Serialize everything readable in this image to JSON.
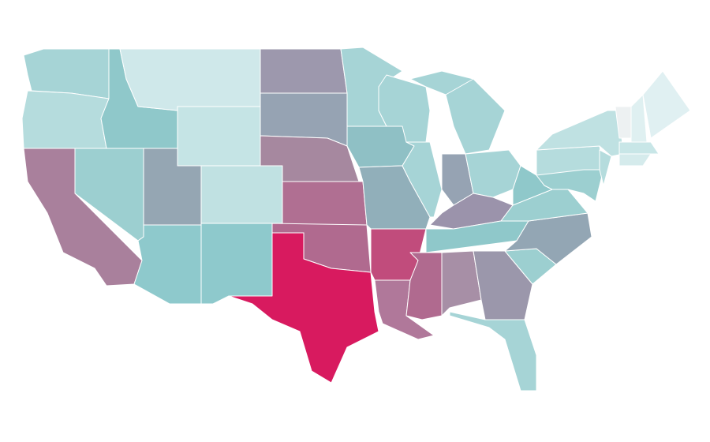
{
  "map": {
    "regions": [
      {
        "color": "#a6d4d6"
      },
      {
        "color": "#b5dcdd"
      },
      {
        "color": "#a9809c"
      },
      {
        "color": "#9ccfd0"
      },
      {
        "color": "#8fc8ca"
      },
      {
        "color": "#cfe8ea"
      },
      {
        "color": "#c5e4e5"
      },
      {
        "color": "#95a6b3"
      },
      {
        "color": "#c0e1e2"
      },
      {
        "color": "#8ec9cc"
      },
      {
        "color": "#8ec9cc"
      },
      {
        "color": "#9d98ad"
      },
      {
        "color": "#96a3b3"
      },
      {
        "color": "#a6889f"
      },
      {
        "color": "#b06f92"
      },
      {
        "color": "#b06a8f"
      },
      {
        "color": "#d81a5f"
      },
      {
        "color": "#a6d4d6"
      },
      {
        "color": "#8fc0c5"
      },
      {
        "color": "#91afba"
      },
      {
        "color": "#c14c7c"
      },
      {
        "color": "#b0789a"
      },
      {
        "color": "#a6d4d6"
      },
      {
        "color": "#a6d4d6"
      },
      {
        "color": "#a6d4d6"
      },
      {
        "color": "#96a3b3"
      },
      {
        "color": "#a6d4d6"
      },
      {
        "color": "#9b93ab"
      },
      {
        "color": "#8fc8ca"
      },
      {
        "color": "#b06a8f"
      },
      {
        "color": "#a78fa6"
      },
      {
        "color": "#9b97ab"
      },
      {
        "color": "#a6d4d6"
      },
      {
        "color": "#9ccfd0"
      },
      {
        "color": "#93a6b4"
      },
      {
        "color": "#9ccfd0"
      },
      {
        "color": "#8fc8ca"
      },
      {
        "color": "#b5dcdd"
      },
      {
        "color": "#bfe1e2"
      },
      {
        "color": "#9ccfd0"
      },
      {
        "color": "#b5dcdd"
      },
      {
        "color": "#edf1f2"
      },
      {
        "color": "#dff0f1"
      },
      {
        "color": "#e0f0f2"
      },
      {
        "color": "#c8e6e7"
      },
      {
        "color": "#d5ebec"
      }
    ]
  }
}
